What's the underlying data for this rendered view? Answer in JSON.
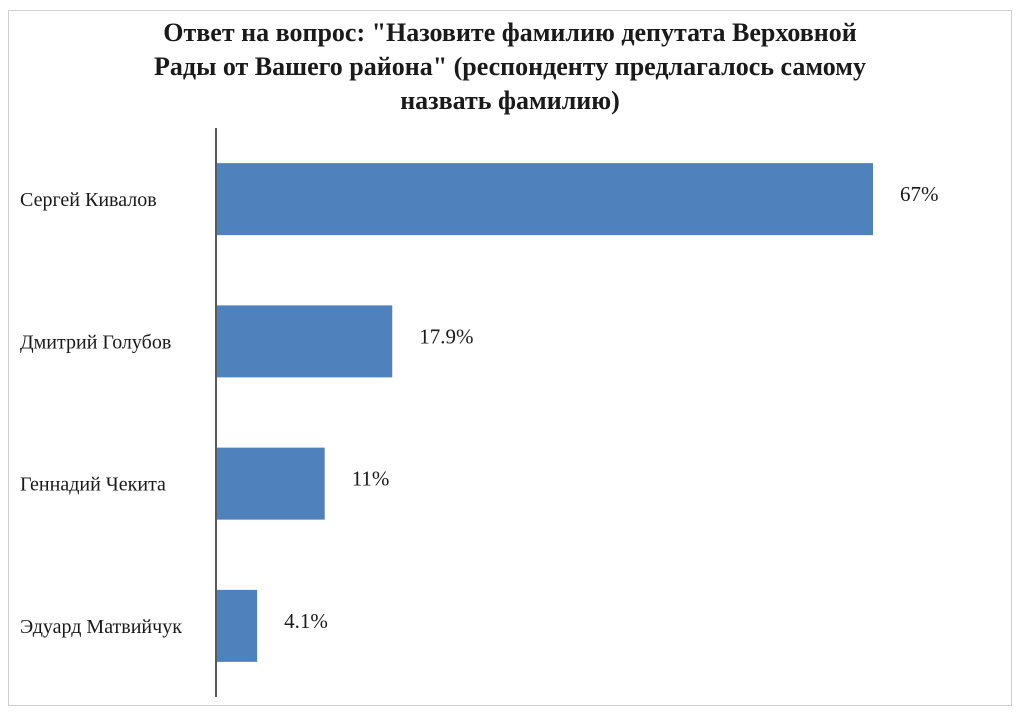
{
  "chart_data": {
    "type": "bar",
    "orientation": "horizontal",
    "title_lines": [
      "Ответ на вопрос: \"Назовите фамилию депутата Верховной",
      "Рады от Вашего района\" (респонденту предлагалось самому",
      "назвать фамилию)"
    ],
    "categories": [
      "Сергей Кивалов",
      "Дмитрий Голубов",
      "Геннадий Чекита",
      "Эдуард Матвийчук"
    ],
    "values": [
      67,
      17.9,
      11,
      4.1
    ],
    "value_labels": [
      "67%",
      "17.9%",
      "11%",
      "4.1%"
    ],
    "xlim": [
      0,
      67
    ],
    "grid": false,
    "legend": "none",
    "bar_color": "#4f81bd"
  }
}
